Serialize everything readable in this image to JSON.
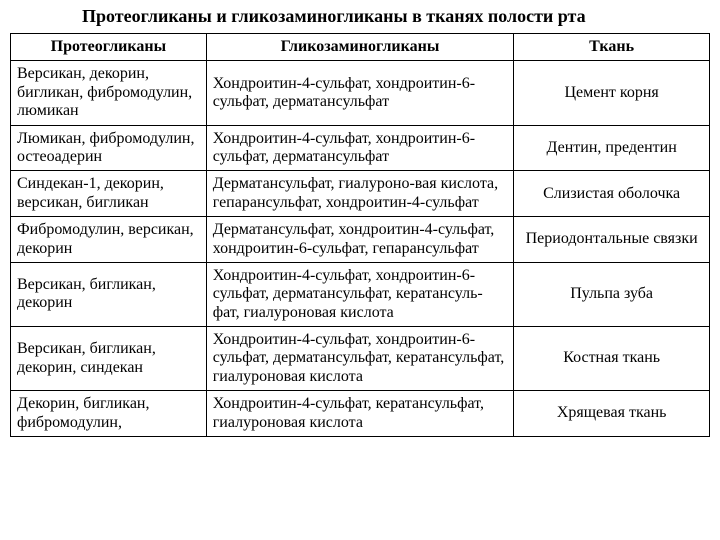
{
  "title": "Протеогликаны и гликозаминогликаны в тканях полости рта",
  "table": {
    "columns": [
      "Протеогликаны",
      "Гликозаминогликаны",
      "Ткань"
    ],
    "col_widths_pct": [
      28,
      44,
      28
    ],
    "col_align": [
      "left",
      "left",
      "center"
    ],
    "header_align": "center",
    "border_color": "#000000",
    "background_color": "#ffffff",
    "font_family": "Times New Roman",
    "header_fontsize_pt": 12,
    "cell_fontsize_pt": 12,
    "rows": [
      [
        "Версикан, декорин, бигликан, фибромодулин, люмикан",
        "Хондроитин-4-сульфат, хондроитин-6-сульфат, дерматансульфат",
        "Цемент корня"
      ],
      [
        "Люмикан, фибромодулин, остеоадерин",
        "Хондроитин-4-сульфат, хондроитин-6-сульфат, дерматансульфат",
        "Дентин, предентин"
      ],
      [
        "Синдекан-1, декорин, версикан, бигликан",
        "Дерматансульфат, гиалуроно-вая кислота, гепарансульфат, хондроитин-4-сульфат",
        "Слизистая оболочка"
      ],
      [
        "Фибромодулин, версикан, декорин",
        "Дерматансульфат, хондроитин-4-сульфат, хондроитин-6-сульфат, гепарансульфат",
        "Периодонтальные связки"
      ],
      [
        "Версикан, бигликан, декорин",
        "Хондроитин-4-сульфат, хондроитин-6-сульфат, дерматансульфат, кератансуль-фат, гиалуроновая кислота",
        "Пульпа зуба"
      ],
      [
        "Версикан, бигликан, декорин, синдекан",
        "Хондроитин-4-сульфат, хондроитин-6-сульфат, дерматансульфат, кератансульфат, гиалуроновая кислота",
        "Костная ткань"
      ],
      [
        "Декорин, бигликан, фибромодулин,",
        "Хондроитин-4-сульфат, кератансульфат, гиалуроновая кислота",
        "Хрящевая ткань"
      ]
    ]
  }
}
